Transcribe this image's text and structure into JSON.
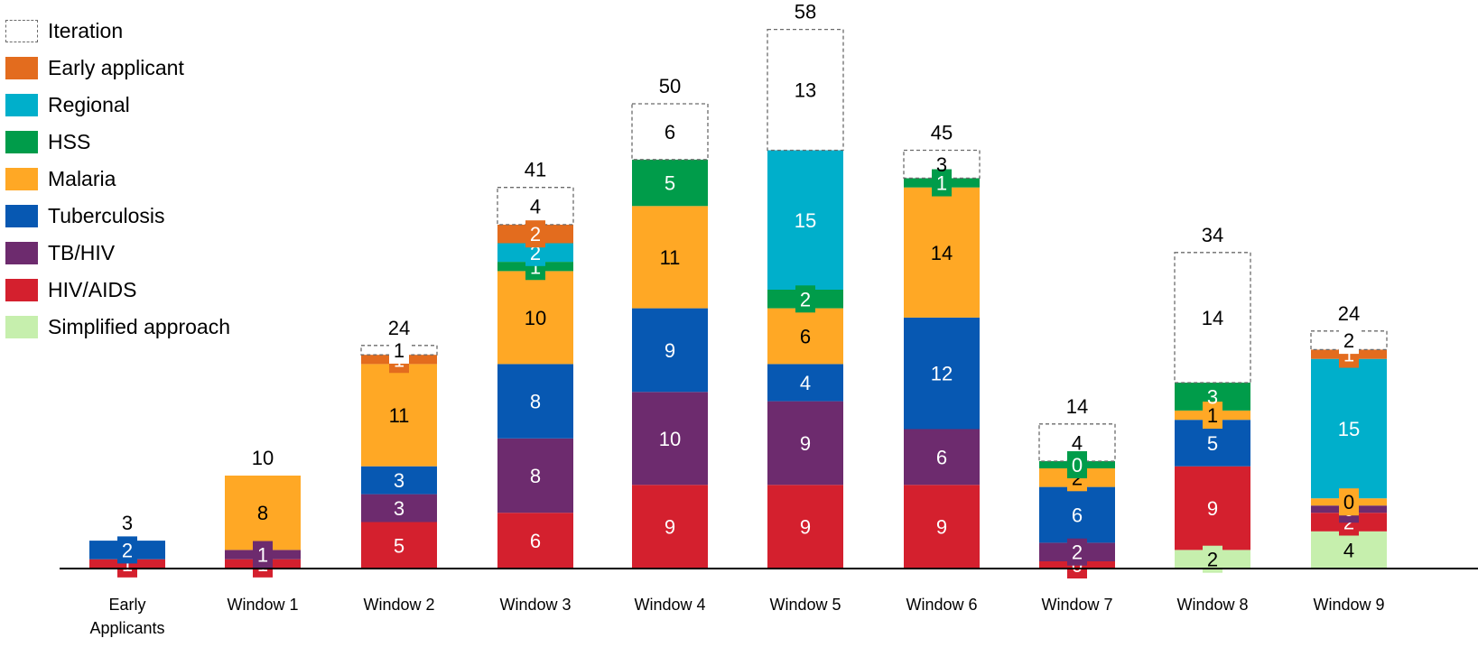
{
  "chart_data": {
    "type": "bar",
    "stacked": true,
    "categories": [
      "Early Applicants",
      "Window 1",
      "Window 2",
      "Window 3",
      "Window 4",
      "Window 5",
      "Window 6",
      "Window 7",
      "Window 8",
      "Window 9"
    ],
    "series": [
      {
        "name": "Simplified approach",
        "color": "#c6efad",
        "values": [
          null,
          null,
          null,
          null,
          null,
          null,
          null,
          null,
          2,
          4
        ]
      },
      {
        "name": "HIV/AIDS",
        "color": "#d4202e",
        "values": [
          1,
          1,
          5,
          6,
          9,
          9,
          9,
          0,
          9,
          2
        ]
      },
      {
        "name": "TB/HIV",
        "color": "#6d2b6e",
        "values": [
          null,
          1,
          3,
          8,
          10,
          9,
          6,
          2,
          null,
          0
        ]
      },
      {
        "name": "Tuberculosis",
        "color": "#0758b2",
        "values": [
          2,
          null,
          3,
          8,
          9,
          4,
          12,
          6,
          5,
          null
        ]
      },
      {
        "name": "Malaria",
        "color": "#ffa825",
        "values": [
          null,
          8,
          11,
          10,
          11,
          6,
          14,
          2,
          1,
          0
        ]
      },
      {
        "name": "HSS",
        "color": "#009c4a",
        "values": [
          null,
          null,
          null,
          1,
          5,
          2,
          1,
          0,
          3,
          null
        ]
      },
      {
        "name": "Regional",
        "color": "#00afcb",
        "values": [
          null,
          null,
          null,
          2,
          null,
          15,
          null,
          null,
          null,
          15
        ]
      },
      {
        "name": "Early applicant",
        "color": "#e36c1e",
        "values": [
          null,
          null,
          1,
          2,
          null,
          null,
          null,
          null,
          null,
          1
        ]
      },
      {
        "name": "Iteration",
        "color": "#ffffff",
        "values": [
          null,
          null,
          1,
          4,
          6,
          13,
          3,
          4,
          14,
          2
        ]
      }
    ],
    "totals": [
      3,
      10,
      24,
      41,
      50,
      58,
      45,
      14,
      34,
      24
    ],
    "legend_position": "top-left",
    "grid": false
  }
}
